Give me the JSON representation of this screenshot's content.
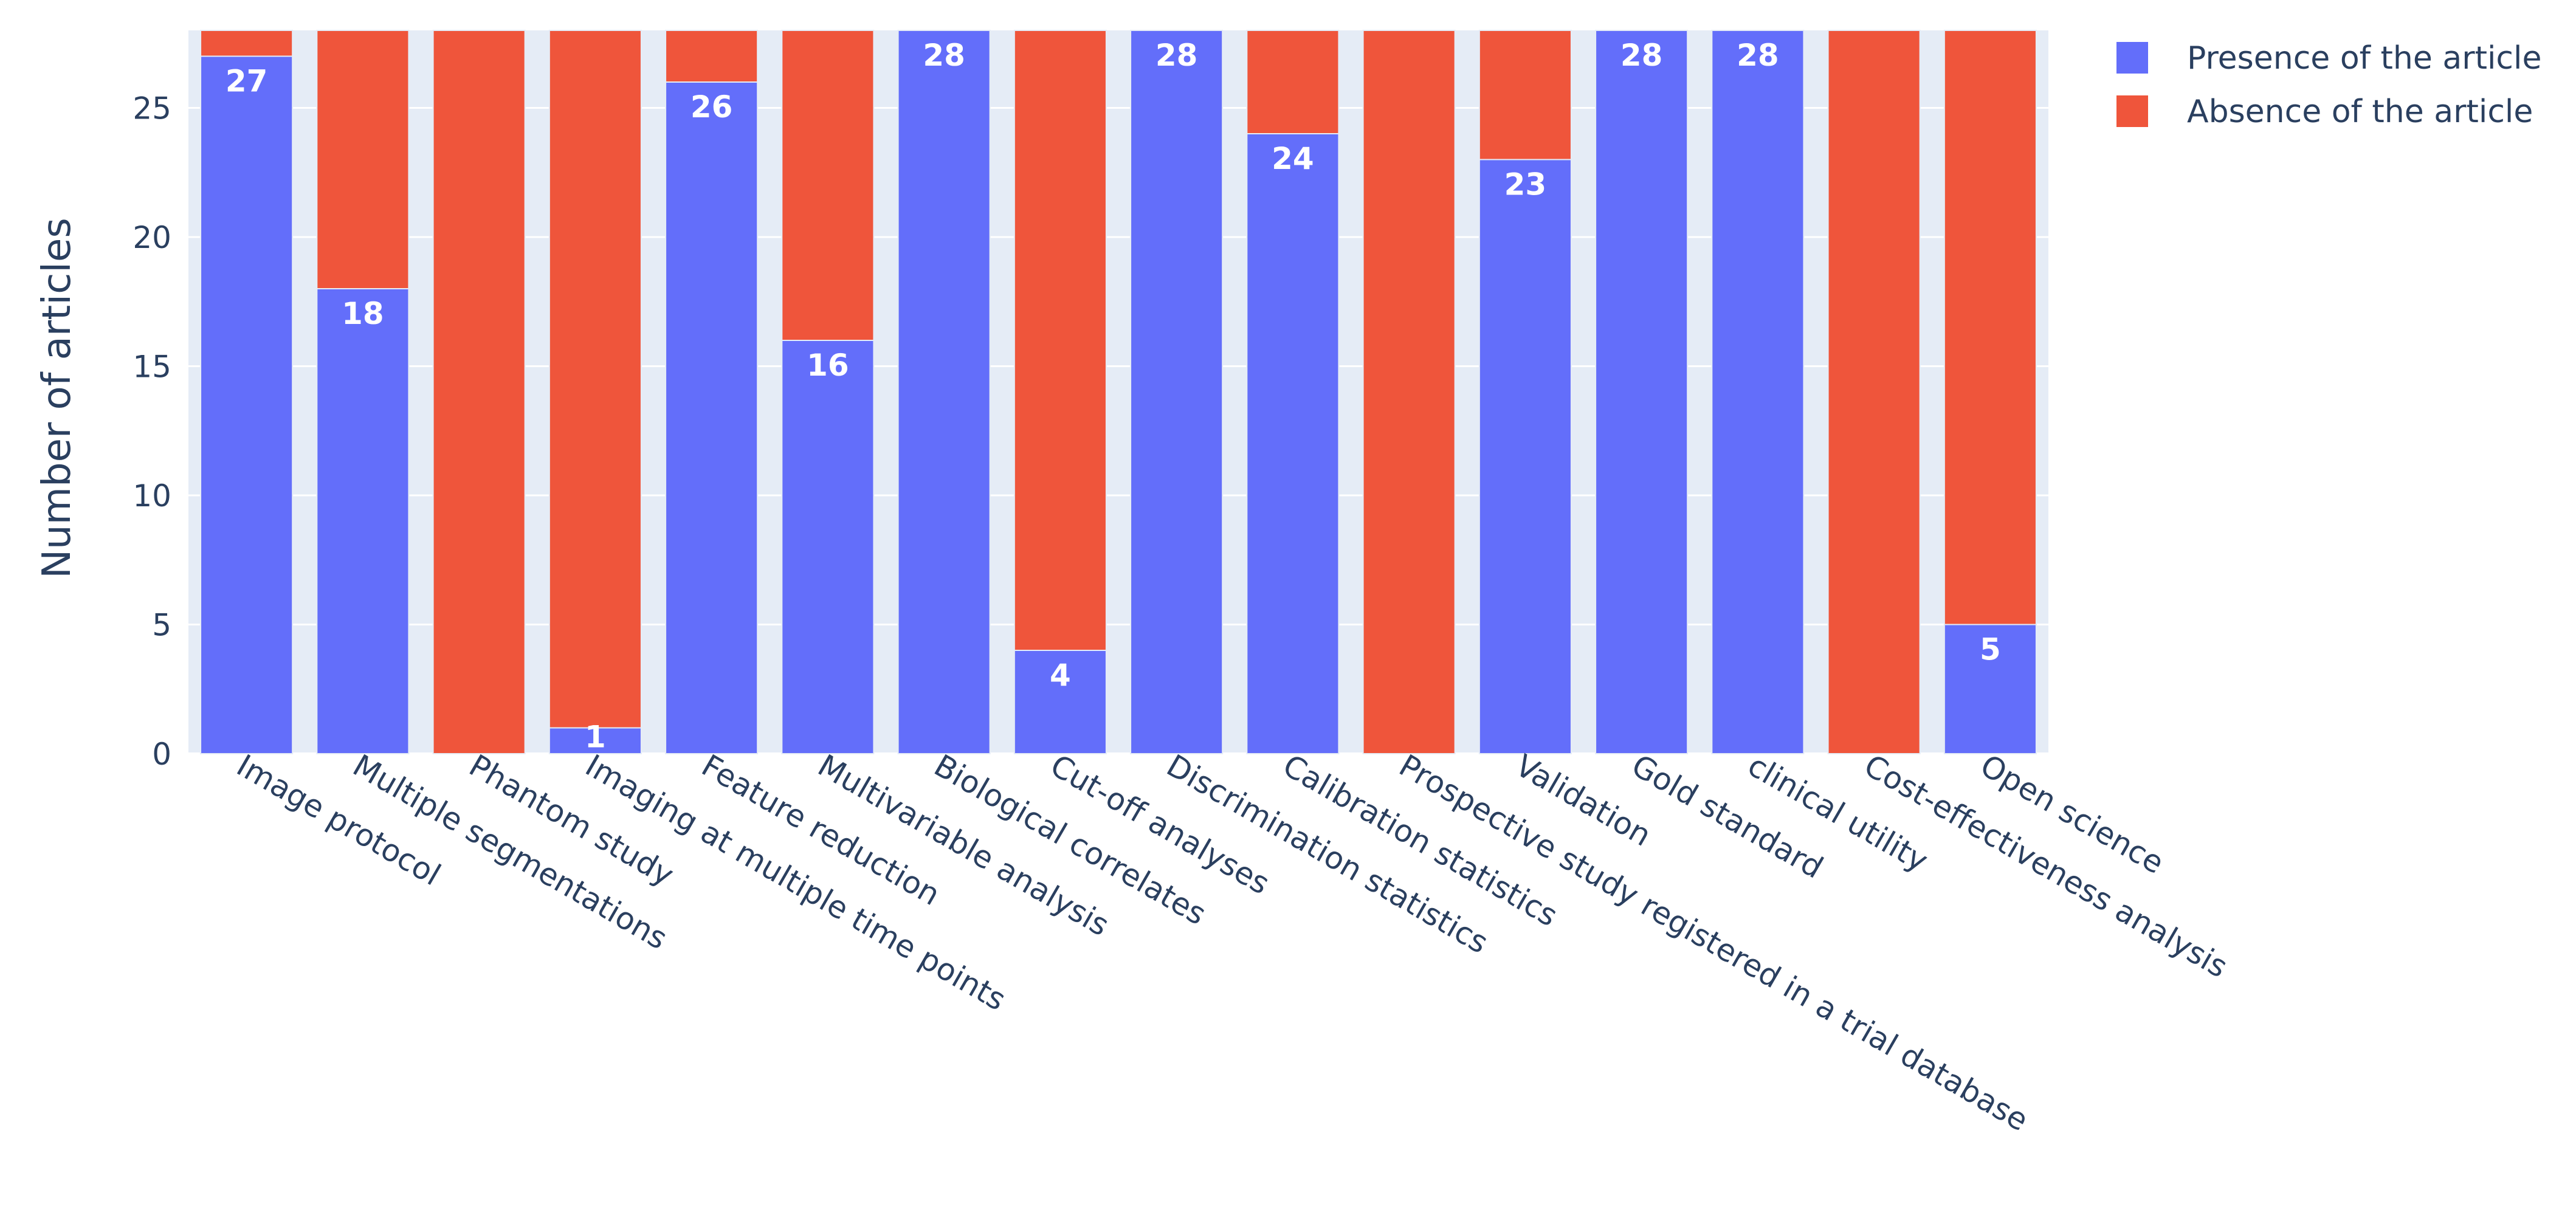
{
  "chart_data": {
    "type": "bar",
    "barmode": "stack",
    "title": "",
    "xlabel": "",
    "ylabel": "Number of articles",
    "ylim": [
      0,
      28
    ],
    "yticks": [
      0,
      5,
      10,
      15,
      20,
      25
    ],
    "categories": [
      "Image protocol",
      "Multiple segmentations",
      "Phantom study",
      "Imaging at multiple time points",
      "Feature reduction",
      "Multivariable analysis",
      "Biological correlates",
      "Cut-off analyses",
      "Discrimination statistics",
      "Calibration statistics",
      "Prospective study registered in a trial database",
      "Validation",
      "Gold standard",
      "clinical utility",
      "Cost-effectiveness analysis",
      "Open science"
    ],
    "series": [
      {
        "name": "Presence of the article",
        "color": "#636efa",
        "values": [
          27,
          18,
          0,
          1,
          26,
          16,
          28,
          4,
          28,
          24,
          0,
          23,
          28,
          28,
          0,
          5
        ],
        "labels": [
          "27",
          "18",
          "",
          "1",
          "26",
          "16",
          "28",
          "4",
          "28",
          "24",
          "",
          "23",
          "28",
          "28",
          "",
          "5"
        ]
      },
      {
        "name": "Absence of the article",
        "color": "#ef553b",
        "values": [
          1,
          10,
          28,
          27,
          2,
          12,
          0,
          24,
          0,
          4,
          28,
          5,
          0,
          0,
          28,
          23
        ],
        "labels": [
          "",
          "",
          "",
          "",
          "",
          "",
          "",
          "",
          "",
          "",
          "",
          "",
          "",
          "",
          "",
          ""
        ]
      }
    ],
    "grid": true,
    "legend_position": "top-right",
    "background_color": "#e5ecf6"
  }
}
